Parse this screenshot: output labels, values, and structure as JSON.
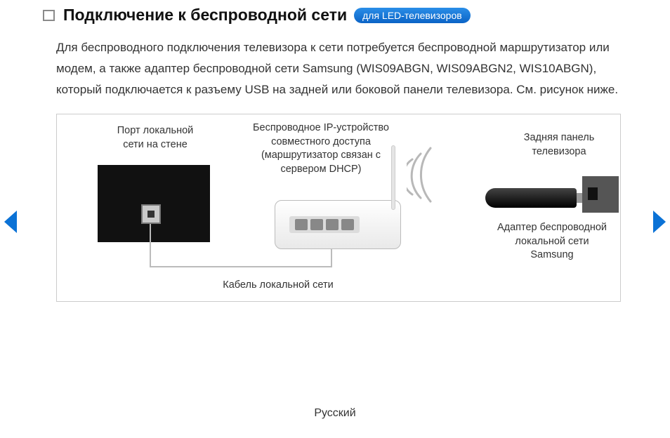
{
  "header": {
    "title": "Подключение к беспроводной сети",
    "badge": "для LED-телевизоров"
  },
  "body_text": "Для беспроводного подключения телевизора к сети потребуется беспроводной маршрутизатор или модем, а также адаптер беспроводной сети Samsung (WIS09ABGN, WIS09ABGN2, WIS10ABGN), который подключается к разъему USB на задней или боковой панели телевизора. См. рисунок ниже.",
  "diagram": {
    "wall_port_label": "Порт локальной\nсети на стене",
    "router_label": "Беспроводное IP-устройство\nсовместного доступа\n(маршрутизатор связан с\nсервером DHCP)",
    "tv_back_label": "Задняя панель\nтелевизора",
    "adapter_label": "Адаптер беспроводной\nлокальной сети\nSamsung",
    "lan_cable_label": "Кабель локальной сети",
    "colors": {
      "border": "#cccccc",
      "wall": "#111111",
      "router_body": "#e9e9e9",
      "port": "#888888",
      "cable": "#bbbbbb",
      "adapter": "#000000",
      "tvback": "#555555",
      "wifi_stroke": "#b8b8b8"
    }
  },
  "nav": {
    "arrow_color": "#0b72d6"
  },
  "footer": {
    "language": "Русский"
  }
}
